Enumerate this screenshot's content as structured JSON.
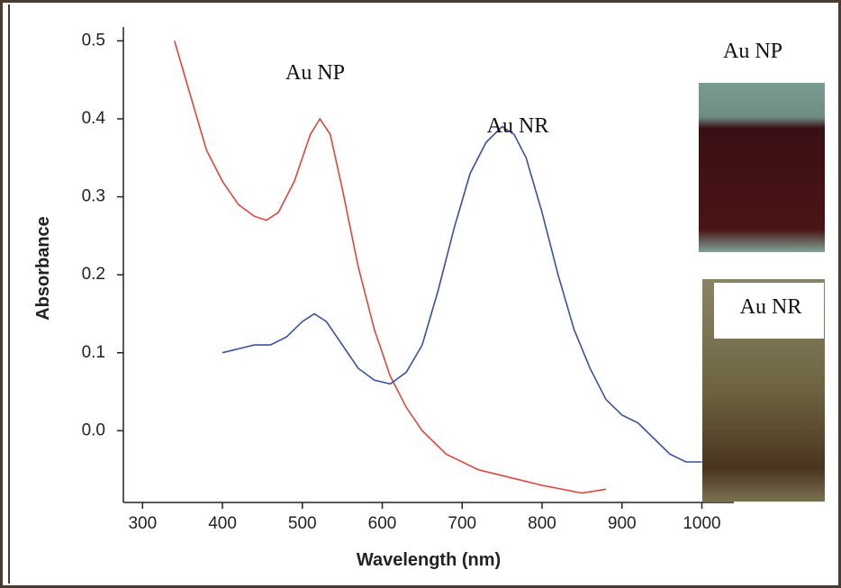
{
  "chart_data": {
    "type": "line",
    "x_label": "Wavelength (nm)",
    "y_label": "Absorbance",
    "annotations": [
      "Au NP",
      "Au NR"
    ],
    "image_labels": [
      "Au NP",
      "Au NR"
    ],
    "xlim": [
      276,
      1040
    ],
    "ylim": [
      -0.092,
      0.512
    ],
    "xticks": [
      300,
      400,
      500,
      600,
      700,
      800,
      900,
      1000
    ],
    "yticks": [
      {
        "value": 0,
        "label": "0.0"
      },
      0.1,
      0.2,
      0.3,
      0.4,
      0.5
    ],
    "series": [
      {
        "color": "#e0453a",
        "x": [
          340,
          360,
          380,
          400,
          420,
          440,
          455,
          470,
          490,
          510,
          522,
          535,
          550,
          570,
          590,
          610,
          630,
          650,
          680,
          720,
          760,
          800,
          850,
          880
        ],
        "values": [
          0.5,
          0.43,
          0.36,
          0.32,
          0.29,
          0.275,
          0.27,
          0.28,
          0.32,
          0.38,
          0.4,
          0.38,
          0.31,
          0.21,
          0.13,
          0.07,
          0.03,
          0.0,
          -0.03,
          -0.05,
          -0.06,
          -0.07,
          -0.08,
          -0.075
        ]
      },
      {
        "color": "#3b4fa0",
        "x": [
          400,
          420,
          440,
          460,
          480,
          500,
          515,
          530,
          550,
          570,
          590,
          610,
          630,
          650,
          670,
          690,
          710,
          730,
          750,
          765,
          780,
          800,
          820,
          840,
          860,
          880,
          900,
          920,
          940,
          960,
          980,
          1000
        ],
        "values": [
          0.1,
          0.105,
          0.11,
          0.11,
          0.12,
          0.14,
          0.15,
          0.14,
          0.11,
          0.08,
          0.065,
          0.06,
          0.075,
          0.11,
          0.18,
          0.26,
          0.33,
          0.37,
          0.39,
          0.38,
          0.35,
          0.28,
          0.2,
          0.13,
          0.08,
          0.04,
          0.02,
          0.01,
          -0.01,
          -0.03,
          -0.04,
          -0.04
        ]
      }
    ]
  }
}
